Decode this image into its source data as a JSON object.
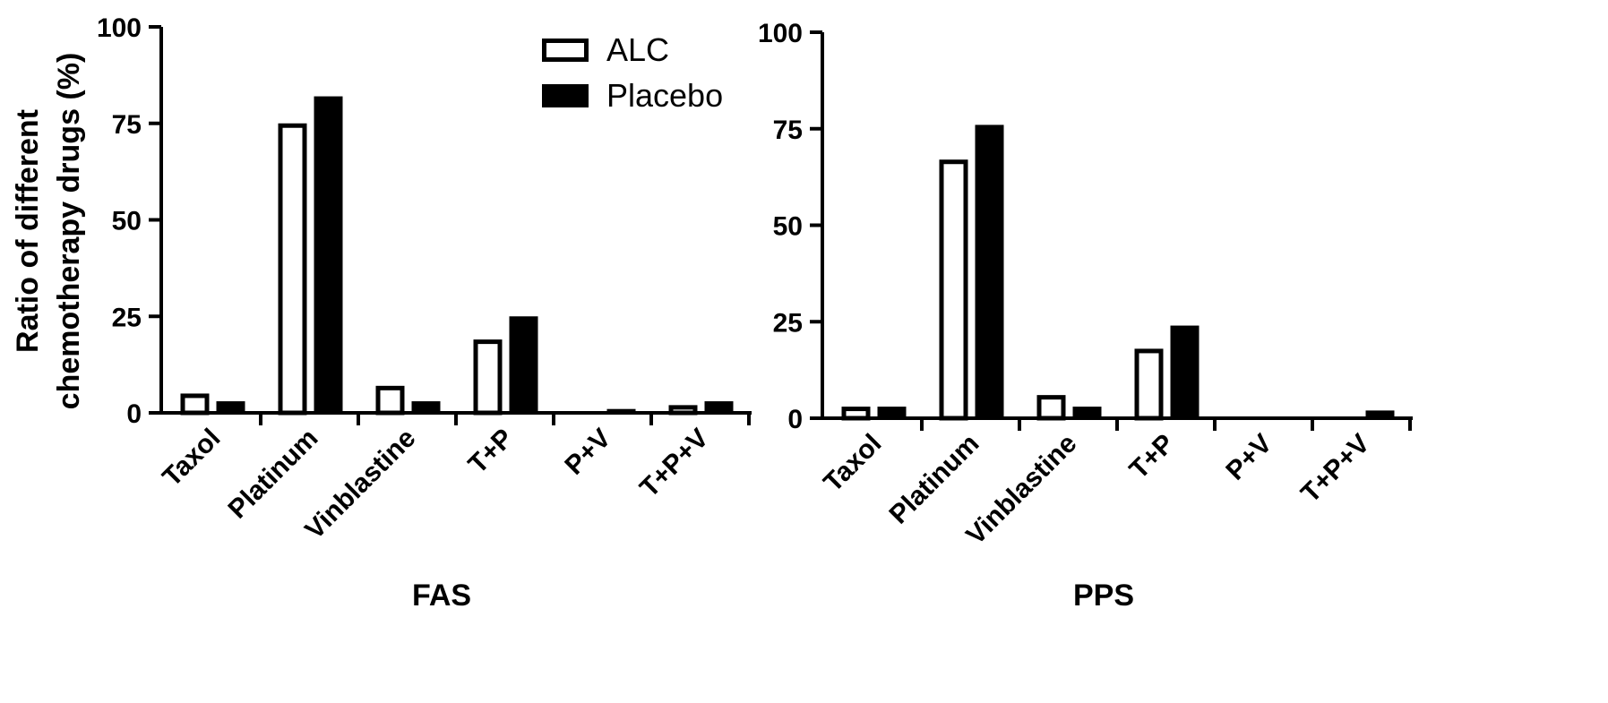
{
  "chart_data": [
    {
      "type": "bar",
      "xlabel": "FAS",
      "ylabel": [
        "Ratio of different",
        "chemotherapy drugs (%)"
      ],
      "ylim": [
        0,
        100
      ],
      "yticks": [
        0,
        25,
        50,
        75,
        100
      ],
      "categories": [
        "Taxol",
        "Platinum",
        "Vinblastine",
        "T+P",
        "P+V",
        "T+P+V"
      ],
      "series": [
        {
          "name": "ALC",
          "values": [
            5,
            75,
            7,
            19,
            0,
            2
          ]
        },
        {
          "name": "Placebo",
          "values": [
            3,
            82,
            3,
            25,
            1,
            3
          ]
        }
      ],
      "legend": "top-right"
    },
    {
      "type": "bar",
      "xlabel": "PPS",
      "ylabel": [],
      "ylim": [
        0,
        100
      ],
      "yticks": [
        0,
        25,
        50,
        75,
        100
      ],
      "categories": [
        "Taxol",
        "Platinum",
        "Vinblastine",
        "T+P",
        "P+V",
        "T+P+V"
      ],
      "series": [
        {
          "name": "ALC",
          "values": [
            3,
            67,
            6,
            18,
            0,
            0
          ]
        },
        {
          "name": "Placebo",
          "values": [
            3,
            76,
            3,
            24,
            0,
            2
          ]
        }
      ]
    }
  ],
  "colors": {
    "alc_fill": "#ffffff",
    "placebo_fill": "#000000",
    "stroke": "#000000"
  }
}
